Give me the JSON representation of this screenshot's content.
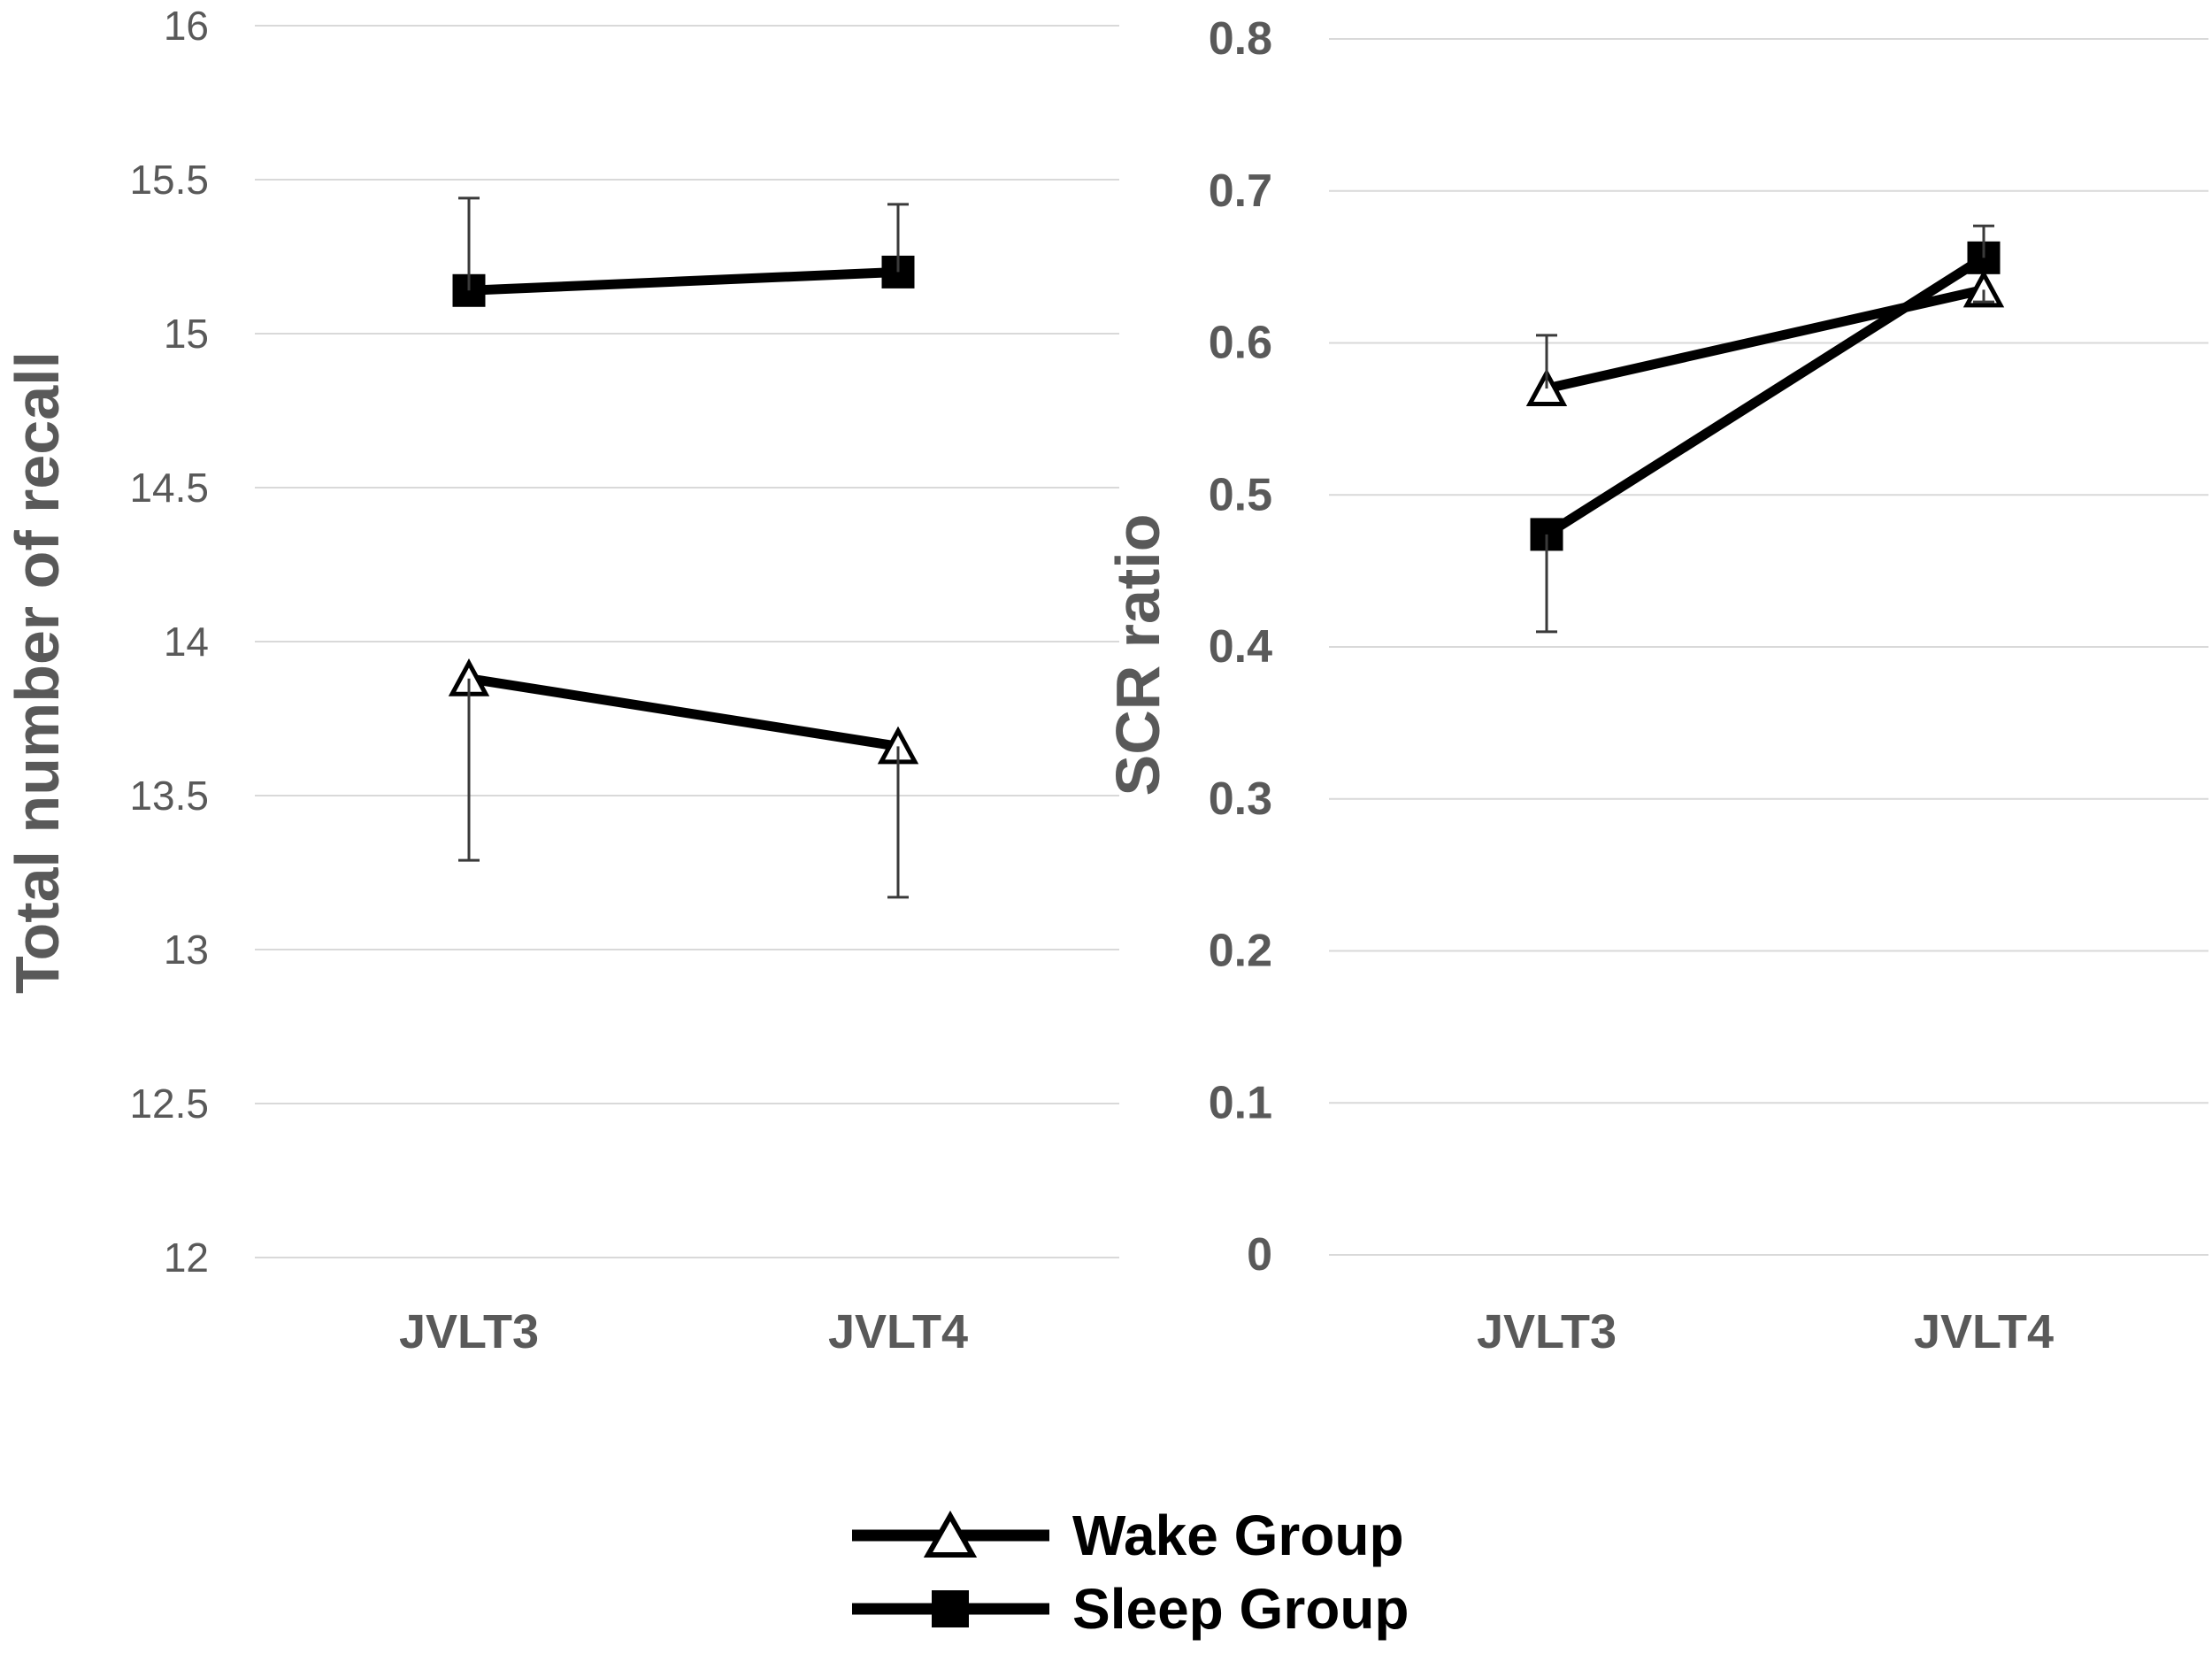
{
  "figure": {
    "background": "#ffffff",
    "description": "Two-panel line chart comparing Wake Group and Sleep Group across JVLT3 and JVLT4"
  },
  "chart_data": [
    {
      "id": "recall-chart",
      "type": "line",
      "title": "",
      "xlabel": "",
      "ylabel": "Total number of recall",
      "categories": [
        "JVLT3",
        "JVLT4"
      ],
      "ylim": [
        12,
        16
      ],
      "ytick_step": 0.5,
      "grid": true,
      "series": [
        {
          "name": "Wake Group",
          "marker": "triangle-open",
          "values": [
            13.88,
            13.66
          ],
          "error_low": [
            13.29,
            13.17
          ],
          "error_high": [
            null,
            null
          ]
        },
        {
          "name": "Sleep Group",
          "marker": "square-filled",
          "values": [
            15.14,
            15.2
          ],
          "error_low": [
            null,
            null
          ],
          "error_high": [
            15.44,
            15.42
          ]
        }
      ]
    },
    {
      "id": "scr-chart",
      "type": "line",
      "title": "",
      "xlabel": "",
      "ylabel": "SCR ratio",
      "categories": [
        "JVLT3",
        "JVLT4"
      ],
      "ylim": [
        0,
        0.8
      ],
      "ytick_step": 0.1,
      "grid": true,
      "series": [
        {
          "name": "Wake Group",
          "marker": "triangle-open",
          "values": [
            0.57,
            0.635
          ],
          "error_low": [
            null,
            0.627
          ],
          "error_high": [
            0.605,
            null
          ]
        },
        {
          "name": "Sleep Group",
          "marker": "square-filled",
          "values": [
            0.474,
            0.656
          ],
          "error_low": [
            0.41,
            null
          ],
          "error_high": [
            null,
            0.677
          ]
        }
      ]
    }
  ],
  "legend": {
    "position": "bottom-center",
    "entries": [
      {
        "label": "Wake Group",
        "marker": "triangle-open"
      },
      {
        "label": "Sleep Group",
        "marker": "square-filled"
      }
    ]
  },
  "colors": {
    "series_line": "#000000",
    "marker_fill": "#000000",
    "marker_open_fill": "#ffffff",
    "grid": "#d9d9d9",
    "tick_label": "#595959",
    "axis_title": "#595959",
    "category_label": "#595959",
    "error_bar": "#3a3a3a",
    "legend_text": "#000000"
  }
}
